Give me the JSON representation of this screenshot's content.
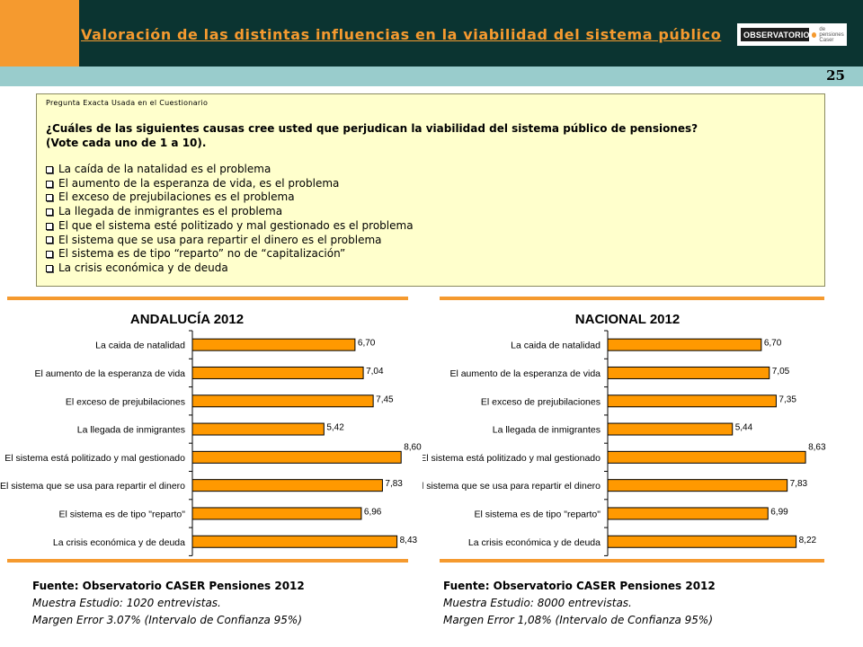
{
  "header": {
    "title": "Valoración de las distintas influencias en la viabilidad del sistema público",
    "logo_text": "OBSERVATORIO",
    "logo_sub": "de pensiones Caser",
    "page_number": "25"
  },
  "question": {
    "label": "Pregunta Exacta Usada en el Cuestionario",
    "text_line1": "¿Cuáles de las siguientes causas cree usted que perjudican la viabilidad del sistema público de pensiones?",
    "text_line2": "(Vote cada uno de 1 a 10).",
    "options": [
      "La caída de la natalidad es el problema",
      "El aumento de la esperanza de vida, es el problema",
      "El exceso de prejubilaciones es el problema",
      "La llegada de inmigrantes es el problema",
      "El que el sistema esté politizado y mal gestionado es el problema",
      "El sistema que se usa para repartir el dinero es el problema",
      "El sistema es de tipo “reparto” no de “capitalización”",
      "La crisis económica y de deuda"
    ]
  },
  "chart_data": [
    {
      "type": "bar",
      "orientation": "horizontal",
      "title": "ANDALUCÍA 2012",
      "categories": [
        "La caida de natalidad",
        "El aumento de la esperanza de vida",
        "El exceso de prejubilaciones",
        "La llegada de inmigrantes",
        "El sistema está politizado y mal gestionado",
        "El sistema que se usa para repartir el dinero",
        "El sistema es de tipo \"reparto\"",
        "La crisis económica y de deuda"
      ],
      "values": [
        6.7,
        7.04,
        7.45,
        5.42,
        8.6,
        7.83,
        6.96,
        8.43
      ],
      "labels": [
        "6,70",
        "7,04",
        "7,45",
        "5,42",
        "8,60",
        "7,83",
        "6,96",
        "8,43"
      ],
      "xlim": [
        0,
        10
      ],
      "bar_color": "#ff9900"
    },
    {
      "type": "bar",
      "orientation": "horizontal",
      "title": "NACIONAL 2012",
      "categories": [
        "La caida de natalidad",
        "El aumento de la esperanza de vida",
        "El exceso de prejubilaciones",
        "La llegada de inmigrantes",
        "El sistema está politizado y mal gestionado",
        "El sistema que se usa para repartir el dinero",
        "El sistema es de tipo \"reparto\"",
        "La crisis económica y de deuda"
      ],
      "values": [
        6.7,
        7.05,
        7.35,
        5.44,
        8.63,
        7.83,
        6.99,
        8.22
      ],
      "labels": [
        "6,70",
        "7,05",
        "7,35",
        "5,44",
        "8,63",
        "7,83",
        "6,99",
        "8,22"
      ],
      "xlim": [
        0,
        10
      ],
      "bar_color": "#ff9900"
    }
  ],
  "footnotes": {
    "left": {
      "source": "Fuente: Observatorio CASER Pensiones 2012",
      "sample": "Muestra Estudio: 1020 entrevistas.",
      "margin": "Margen Error 3.07% (Intervalo de Confianza 95%)"
    },
    "right": {
      "source": "Fuente: Observatorio CASER Pensiones 2012",
      "sample": "Muestra Estudio: 8000 entrevistas.",
      "margin": "Margen Error 1,08% (Intervalo de Confianza 95%)"
    }
  },
  "colors": {
    "accent": "#f59a2f",
    "header_dark": "#0b3431",
    "band": "#99cccc",
    "question_bg": "#ffffcc"
  }
}
